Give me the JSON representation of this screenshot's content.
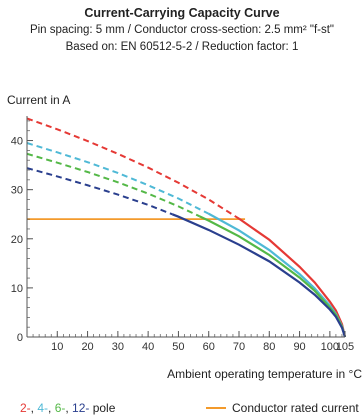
{
  "header": {
    "title": "Current-Carrying Capacity Curve",
    "line1": "Pin spacing: 5 mm / Conductor cross-section: 2.5 mm² \"f-st\"",
    "line2": "Based on: EN 60512-5-2 / Reduction factor: 1"
  },
  "legend": {
    "pole_2": "2-",
    "pole_4": "4-",
    "pole_6": "6-",
    "pole_12": "12-",
    "pole_suffix": " pole",
    "rated": "Conductor rated current"
  },
  "chart_data": {
    "type": "line",
    "xlabel": "Ambient operating temperature in °C",
    "ylabel": "Current in A",
    "xlim": [
      0,
      105
    ],
    "ylim": [
      0,
      45
    ],
    "xticks": [
      10,
      20,
      30,
      40,
      50,
      60,
      70,
      80,
      90,
      100,
      105
    ],
    "yticks": [
      0,
      10,
      20,
      30,
      40
    ],
    "grid": false,
    "colors": {
      "pole_2": "#e53935",
      "pole_4": "#4fb9d6",
      "pole_6": "#54b847",
      "pole_12": "#2a3f8e",
      "rated": "#f39a2b",
      "axis": "#555555"
    },
    "series": [
      {
        "name": "2-pole",
        "color": "#e53935",
        "x": [
          0,
          10,
          20,
          30,
          40,
          50,
          60,
          70,
          80,
          90,
          95,
          100,
          102,
          104,
          105
        ],
        "y": [
          44.5,
          42.3,
          39.9,
          37.3,
          34.5,
          31.4,
          28.0,
          24.1,
          19.8,
          14.3,
          11.1,
          7.2,
          5.4,
          2.6,
          0
        ],
        "dashed_until_x": 70
      },
      {
        "name": "4-pole",
        "color": "#4fb9d6",
        "x": [
          0,
          10,
          20,
          30,
          40,
          50,
          60,
          70,
          80,
          90,
          95,
          100,
          102,
          104,
          105
        ],
        "y": [
          39.5,
          37.6,
          35.6,
          33.4,
          30.9,
          28.2,
          25.1,
          21.7,
          17.7,
          12.8,
          9.9,
          6.4,
          4.7,
          2.2,
          0
        ],
        "dashed_until_x": 60
      },
      {
        "name": "6-pole",
        "color": "#54b847",
        "x": [
          0,
          10,
          20,
          30,
          40,
          50,
          60,
          70,
          80,
          90,
          95,
          100,
          102,
          104,
          105
        ],
        "y": [
          37.3,
          35.5,
          33.6,
          31.5,
          29.2,
          26.6,
          23.7,
          20.5,
          16.7,
          12.1,
          9.4,
          6.0,
          4.5,
          2.1,
          0
        ],
        "dashed_until_x": 57
      },
      {
        "name": "12-pole",
        "color": "#2a3f8e",
        "x": [
          0,
          10,
          20,
          30,
          40,
          50,
          60,
          70,
          80,
          90,
          95,
          100,
          102,
          104,
          105
        ],
        "y": [
          34.4,
          32.7,
          30.9,
          29.0,
          26.9,
          24.5,
          21.8,
          18.8,
          15.4,
          11.1,
          8.6,
          5.6,
          4.1,
          1.9,
          0
        ],
        "dashed_until_x": 48
      }
    ],
    "reference_line": {
      "name": "Conductor rated current",
      "value": 24,
      "x_end": 72,
      "color": "#f39a2b"
    }
  }
}
